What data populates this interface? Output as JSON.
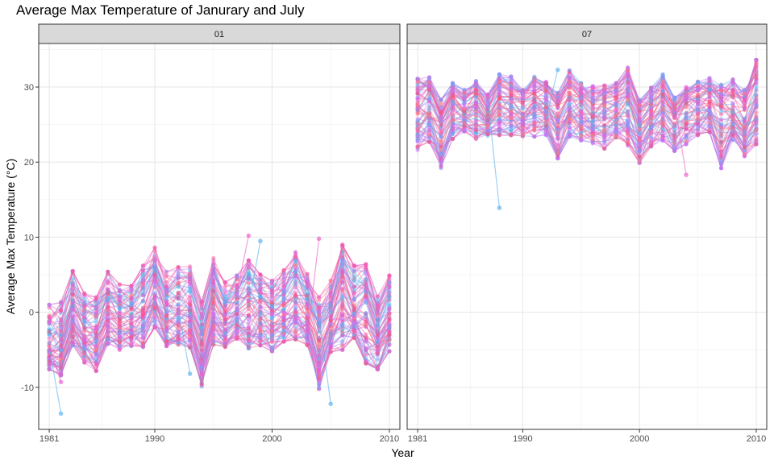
{
  "chart_data": {
    "type": "line",
    "title": "Average Max Temperature of Janurary and July",
    "xlabel": "Year",
    "ylabel": "Average Max Temperature (°C)",
    "xlim": [
      1980.1,
      2010.9
    ],
    "ylim": [
      -15.6,
      35.8
    ],
    "x_ticks": [
      1981,
      1990,
      2000,
      2010
    ],
    "y_ticks": [
      -10,
      0,
      10,
      20,
      30
    ],
    "grid": true,
    "legend": "none",
    "panels": [
      {
        "label": "01",
        "x": [
          1981,
          1982,
          1983,
          1984,
          1985,
          1986,
          1987,
          1988,
          1989,
          1990,
          1991,
          1992,
          1993,
          1994,
          1995,
          1996,
          1997,
          1998,
          1999,
          2000,
          2001,
          2002,
          2003,
          2004,
          2005,
          2006,
          2007,
          2008,
          2009,
          2010
        ],
        "band_low": [
          -7.6,
          -8.4,
          -4.4,
          -6.7,
          -7.8,
          -4.2,
          -5.0,
          -4.5,
          -4.6,
          -2.0,
          -4.5,
          -4.3,
          -4.7,
          -10.1,
          -4.3,
          -4.6,
          -3.5,
          -4.8,
          -4.4,
          -5.2,
          -3.9,
          -3.6,
          -4.4,
          -10.2,
          -5.3,
          -5.0,
          -3.4,
          -6.8,
          -7.6,
          -5.2
        ],
        "band_mean": [
          -4.5,
          -4.6,
          0.4,
          -2.3,
          -2.0,
          0.8,
          -0.4,
          -0.1,
          1.0,
          4.5,
          0.2,
          0.5,
          0.4,
          -4.3,
          2.4,
          -0.6,
          0.6,
          2.6,
          0.8,
          -0.3,
          1.0,
          2.2,
          0.6,
          -3.5,
          -0.5,
          4.3,
          0.6,
          1.9,
          -2.8,
          0.4
        ],
        "band_high": [
          1.0,
          1.5,
          5.5,
          2.5,
          2.0,
          5.4,
          3.7,
          3.5,
          6.2,
          8.6,
          5.4,
          6.0,
          6.1,
          1.4,
          7.2,
          4.0,
          4.9,
          6.9,
          5.0,
          4.2,
          5.6,
          8.0,
          5.1,
          2.0,
          4.2,
          9.0,
          6.2,
          6.4,
          2.1,
          4.9
        ],
        "outliers": [
          {
            "year": 1982,
            "value": -13.5
          },
          {
            "year": 1982,
            "value": -9.3
          },
          {
            "year": 1993,
            "value": -8.2
          },
          {
            "year": 1998,
            "value": 10.2
          },
          {
            "year": 1999,
            "value": 9.5
          },
          {
            "year": 2004,
            "value": 9.8
          },
          {
            "year": 2005,
            "value": -12.2
          }
        ]
      },
      {
        "label": "07",
        "x": [
          1981,
          1982,
          1983,
          1984,
          1985,
          1986,
          1987,
          1988,
          1989,
          1990,
          1991,
          1992,
          1993,
          1994,
          1995,
          1996,
          1997,
          1998,
          1999,
          2000,
          2001,
          2002,
          2003,
          2004,
          2005,
          2006,
          2007,
          2008,
          2009,
          2010
        ],
        "band_low": [
          21.6,
          22.7,
          19.2,
          23.1,
          24.1,
          23.1,
          23.5,
          23.6,
          23.6,
          23.1,
          23.4,
          23.6,
          20.5,
          23.4,
          22.9,
          22.5,
          21.8,
          23.3,
          22.2,
          19.9,
          22.1,
          22.9,
          21.5,
          22.4,
          23.6,
          24.0,
          19.2,
          23.0,
          20.8,
          22.4
        ],
        "band_mean": [
          27.0,
          27.8,
          25.0,
          27.6,
          26.7,
          27.9,
          25.7,
          28.4,
          27.9,
          27.3,
          28.0,
          27.7,
          25.8,
          28.4,
          27.7,
          26.0,
          27.0,
          27.3,
          28.2,
          24.8,
          26.5,
          27.9,
          25.8,
          27.9,
          27.9,
          28.3,
          26.9,
          26.5,
          24.9,
          28.2
        ],
        "band_high": [
          31.1,
          31.3,
          28.3,
          30.5,
          29.6,
          30.8,
          29.0,
          31.7,
          31.4,
          29.6,
          31.4,
          30.7,
          29.2,
          32.2,
          30.5,
          30.1,
          30.2,
          30.5,
          32.6,
          28.3,
          29.9,
          31.7,
          28.6,
          30.0,
          30.7,
          31.2,
          30.3,
          31.0,
          29.6,
          33.6
        ],
        "outliers": [
          {
            "year": 1988,
            "value": 13.9
          },
          {
            "year": 2004,
            "value": 18.3
          },
          {
            "year": 1993,
            "value": 32.3
          },
          {
            "year": 2010,
            "value": 33.6
          }
        ]
      }
    ],
    "series_colors": [
      "#5ab1ee",
      "#7f9ef3",
      "#a78bf5",
      "#cf6ef0",
      "#ed5ec9",
      "#f8549e",
      "#f4577a",
      "#f67a8a"
    ]
  }
}
